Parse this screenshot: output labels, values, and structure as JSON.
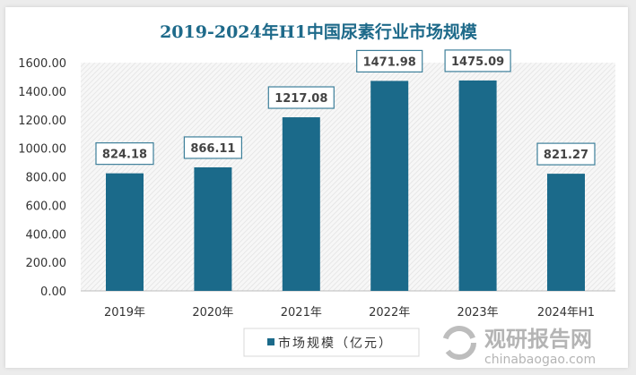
{
  "chart_data": {
    "type": "bar",
    "title": "2019-2024年H1中国尿素行业市场规模",
    "categories": [
      "2019年",
      "2020年",
      "2021年",
      "2022年",
      "2023年",
      "2024年H1"
    ],
    "series": [
      {
        "name": "市场规模（亿元）",
        "values": [
          824.18,
          866.11,
          1217.08,
          1471.98,
          1475.09,
          821.27
        ]
      }
    ],
    "data_labels": [
      "824.18",
      "866.11",
      "1217.08",
      "1471.98",
      "1475.09",
      "821.27"
    ],
    "yticks": [
      "0.00",
      "200.00",
      "400.00",
      "600.00",
      "800.00",
      "1000.00",
      "1200.00",
      "1400.00",
      "1600.00"
    ],
    "ylim": [
      0,
      1600
    ],
    "grid": false,
    "legend": "bottom-left",
    "colors": {
      "bar": "#1b6a8a",
      "title": "#1e6a8a"
    }
  },
  "watermark": {
    "name": "观研报告网",
    "url": "chinabaogao.com"
  }
}
